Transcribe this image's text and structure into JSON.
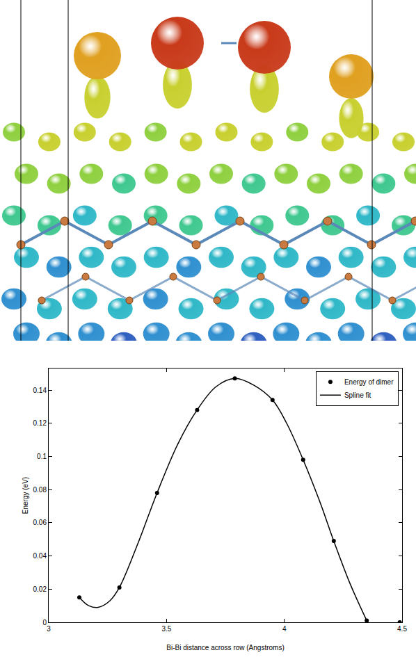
{
  "chart_data": {
    "type": "line",
    "x_label": "Bi-Bi distance across row (Angstroms)",
    "y_label": "Energy (eV)",
    "xlim": [
      3,
      4.5
    ],
    "xticks": [
      3,
      3.5,
      4,
      4.5
    ],
    "ylim": [
      0,
      0.153
    ],
    "yticks": [
      0,
      0.02,
      0.04,
      0.06,
      0.08,
      0.1,
      0.12,
      0.14
    ],
    "grid": false,
    "legend": "top right",
    "series": [
      {
        "name": "Energy of dimer",
        "type": "scatter",
        "marker": "circle",
        "color": "#000000",
        "x": [
          3.13,
          3.3,
          3.46,
          3.63,
          3.79,
          3.95,
          4.08,
          4.21,
          4.35,
          4.49
        ],
        "values": [
          0.015,
          0.021,
          0.078,
          0.128,
          0.147,
          0.134,
          0.098,
          0.049,
          0.001,
          0.0
        ]
      },
      {
        "name": "Spline fit",
        "type": "line",
        "line_style": "solid",
        "color": "#000000",
        "x": [
          3.13,
          3.17,
          3.21,
          3.26,
          3.3,
          3.38,
          3.46,
          3.55,
          3.63,
          3.71,
          3.79,
          3.87,
          3.95,
          4.01,
          4.08,
          4.15,
          4.21,
          4.28,
          4.35
        ],
        "values": [
          0.015,
          0.01,
          0.009,
          0.013,
          0.021,
          0.048,
          0.078,
          0.108,
          0.128,
          0.142,
          0.147,
          0.143,
          0.134,
          0.12,
          0.098,
          0.073,
          0.049,
          0.023,
          0.001
        ]
      }
    ]
  }
}
